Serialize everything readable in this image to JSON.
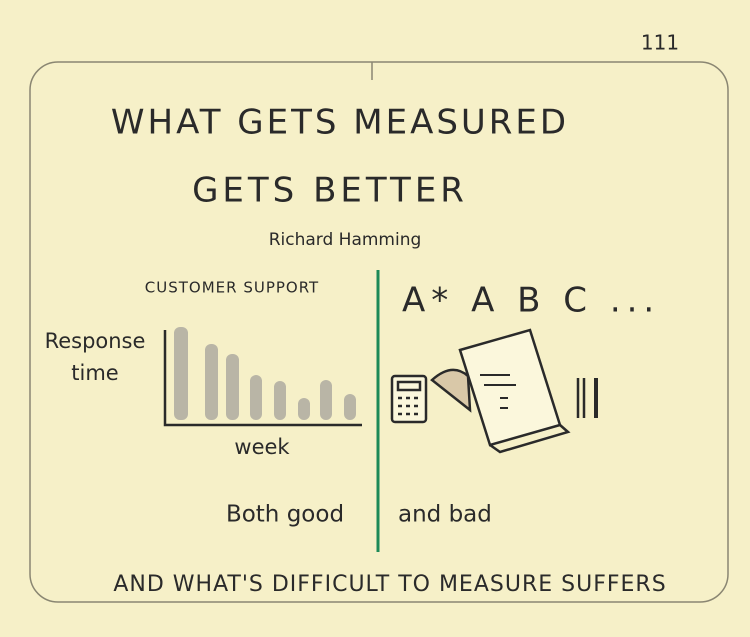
{
  "page_number": "111",
  "title": {
    "line1": "WHAT GETS MEASURED",
    "line2": "GETS BETTER",
    "attribution": "Richard Hamming"
  },
  "left_panel": {
    "heading": "CUSTOMER SUPPORT",
    "y_label": "Response time",
    "x_label": "week",
    "caption": "Both good"
  },
  "right_panel": {
    "grades": "A* A B C ...",
    "caption": "and bad"
  },
  "footer": "AND WHAT'S DIFFICULT TO MEASURE SUFFERS"
}
